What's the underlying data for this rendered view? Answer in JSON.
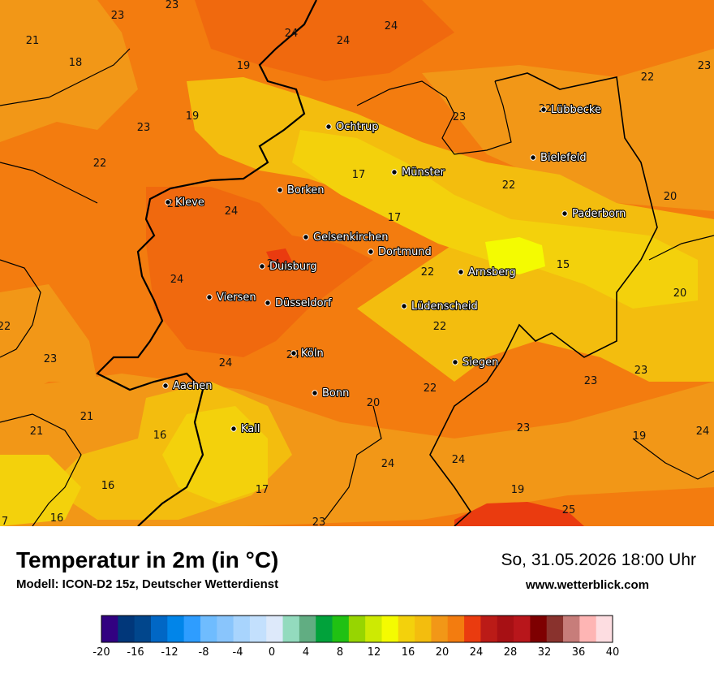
{
  "title": "Temperatur in 2m (in °C)",
  "model": "Modell: ICON-D2 15z, Deutscher Wetterdienst",
  "datetime": "So, 31.05.2026 18:00 Uhr",
  "website": "www.wetterblick.com",
  "cities": [
    {
      "name": "Ochtrup"
    },
    {
      "name": "Lübbecke"
    },
    {
      "name": "Bielefeld"
    },
    {
      "name": "Münster"
    },
    {
      "name": "Borken"
    },
    {
      "name": "Kleve"
    },
    {
      "name": "Paderborn"
    },
    {
      "name": "Gelsenkirchen"
    },
    {
      "name": "Dortmund"
    },
    {
      "name": "Duisburg"
    },
    {
      "name": "Arnsberg"
    },
    {
      "name": "Viersen"
    },
    {
      "name": "Düsseldorf"
    },
    {
      "name": "Lüdenscheid"
    },
    {
      "name": "Köln"
    },
    {
      "name": "Siegen"
    },
    {
      "name": "Aachen"
    },
    {
      "name": "Bonn"
    },
    {
      "name": "Kall"
    }
  ],
  "temperature_labels": [
    "23",
    "23",
    "21",
    "18",
    "24",
    "24",
    "24",
    "19",
    "23",
    "19",
    "22",
    "23",
    "22",
    "22",
    "23",
    "17",
    "22",
    "20",
    "21",
    "24",
    "17",
    "24",
    "24",
    "15",
    "20",
    "24",
    "22",
    "22",
    "22",
    "23",
    "24",
    "24",
    "22",
    "20",
    "23",
    "23",
    "21",
    "16",
    "21",
    "16",
    "23",
    "19",
    "24",
    "24",
    "23",
    "17",
    "16",
    "19",
    "23",
    "25",
    "7"
  ],
  "legend": {
    "ticks": [
      "-20",
      "-16",
      "-12",
      "-8",
      "-4",
      "0",
      "4",
      "8",
      "12",
      "16",
      "20",
      "24",
      "28",
      "32",
      "36",
      "40"
    ],
    "colors": [
      "#320181",
      "#01377a",
      "#01468c",
      "#0167c5",
      "#0185e9",
      "#2e9dff",
      "#6fbcfe",
      "#89c5fc",
      "#a8d4fd",
      "#c3e0fd",
      "#dde9fa",
      "#93dbbe",
      "#61ad82",
      "#01a23b",
      "#20c113",
      "#97d501",
      "#cdea03",
      "#f4fb01",
      "#f3d10c",
      "#f3bd0e",
      "#f29717",
      "#f37c0f",
      "#ea3b0f",
      "#bb1b17",
      "#a71014",
      "#b8161b",
      "#7e0001",
      "#89322d",
      "#c77d7a",
      "#feb5b4",
      "#fddde1"
    ]
  }
}
